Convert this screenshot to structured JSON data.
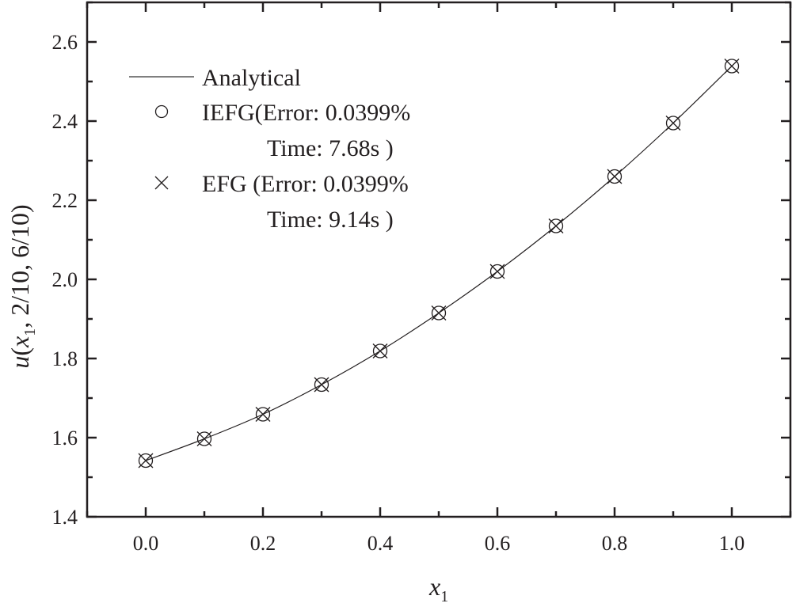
{
  "chart_data": {
    "type": "line",
    "title": "",
    "xlabel": "x",
    "xlabel_sub": "1",
    "ylabel_parts": {
      "u": "u",
      "open": "(",
      "x": "x",
      "sub": "1",
      "rest": ", 2/10, 6/10)"
    },
    "xlim": [
      -0.1,
      1.1
    ],
    "ylim": [
      1.4,
      2.7
    ],
    "x_ticks": [
      "0.0",
      "0.2",
      "0.4",
      "0.6",
      "0.8",
      "1.0"
    ],
    "y_ticks": [
      "1.4",
      "1.6",
      "1.8",
      "2.0",
      "2.2",
      "2.4",
      "2.6"
    ],
    "grid": false,
    "legend_position": "top-left",
    "legend": {
      "analytical": "Analytical",
      "iefg_line1": "IEFG(Error: 0.0399%",
      "iefg_line2": "Time: 7.68s )",
      "efg_line1": "EFG (Error: 0.0399%",
      "efg_line2": "Time: 9.14s )"
    },
    "x": [
      0.0,
      0.1,
      0.2,
      0.3,
      0.4,
      0.5,
      0.6,
      0.7,
      0.8,
      0.9,
      1.0
    ],
    "series": [
      {
        "name": "Analytical",
        "style": "line",
        "values": [
          1.542,
          1.597,
          1.659,
          1.734,
          1.819,
          1.915,
          2.02,
          2.135,
          2.26,
          2.395,
          2.539
        ]
      },
      {
        "name": "IEFG",
        "style": "circle-marker",
        "values": [
          1.542,
          1.597,
          1.659,
          1.734,
          1.819,
          1.915,
          2.02,
          2.135,
          2.26,
          2.395,
          2.539
        ]
      },
      {
        "name": "EFG",
        "style": "cross-marker",
        "values": [
          1.542,
          1.597,
          1.659,
          1.734,
          1.819,
          1.915,
          2.02,
          2.135,
          2.26,
          2.395,
          2.539
        ]
      }
    ],
    "colors": {
      "ink": "#231f20"
    }
  }
}
